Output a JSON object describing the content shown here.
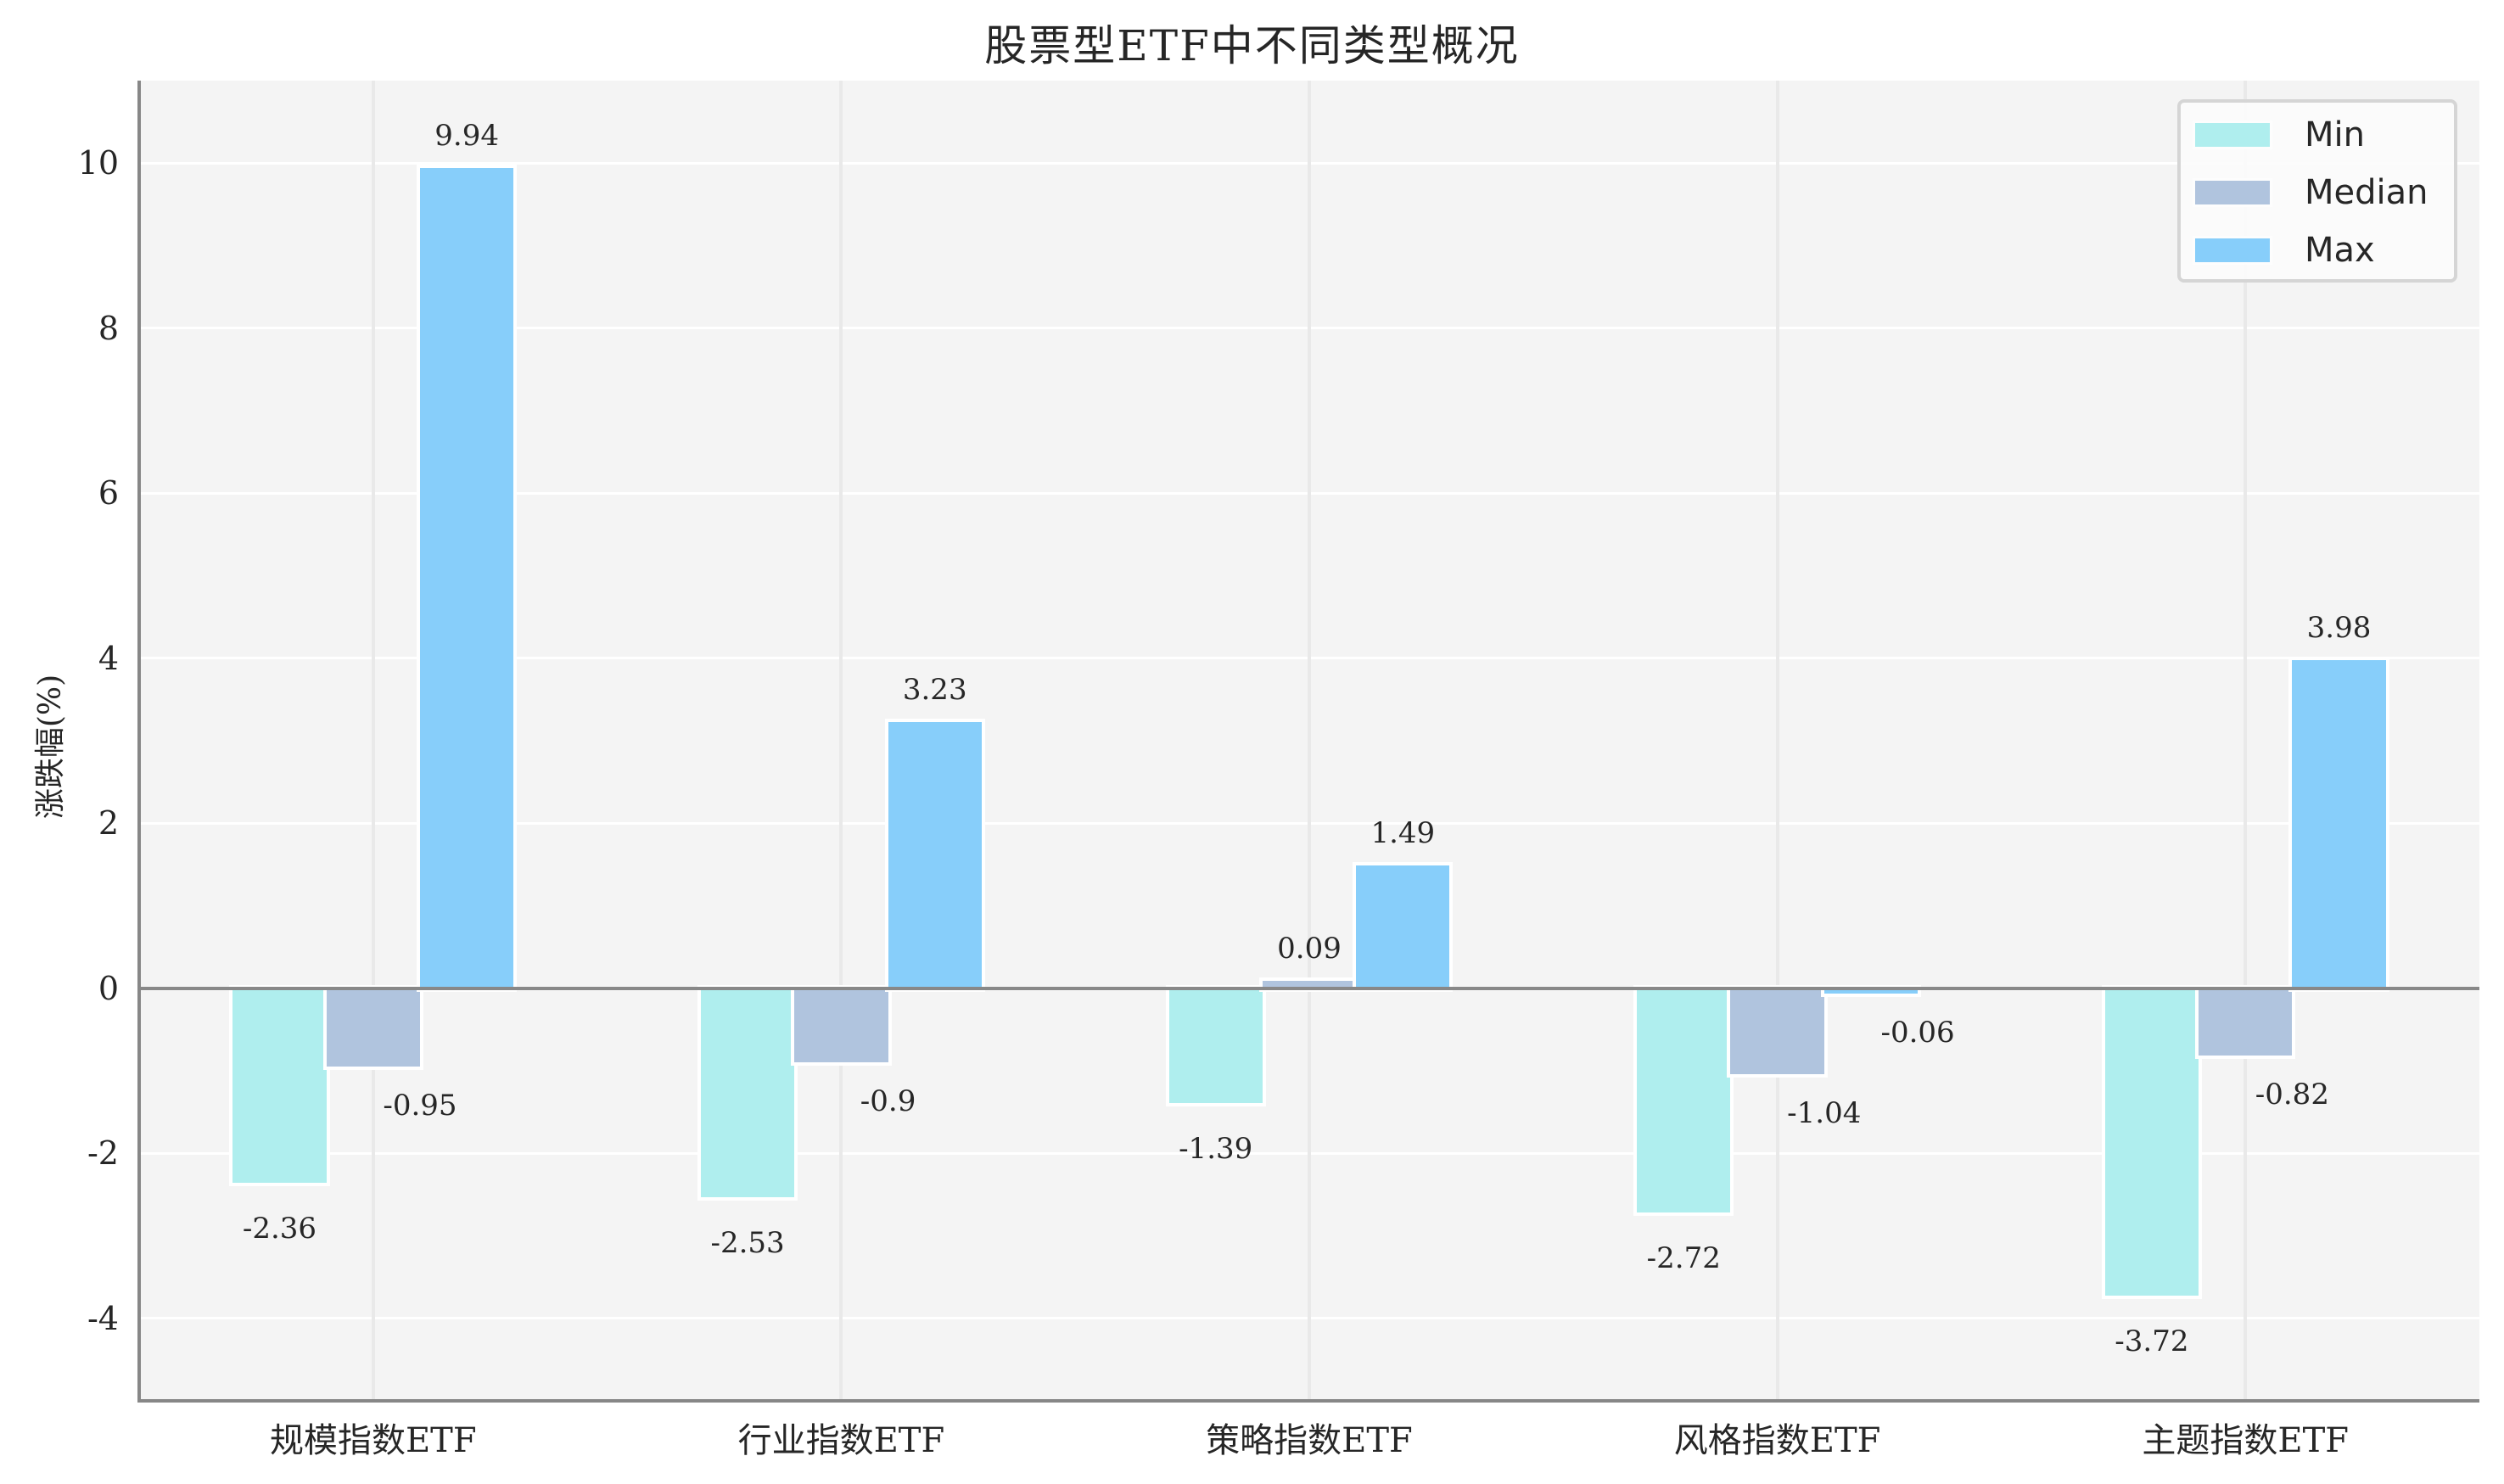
{
  "title": "股票型ETF中不同类型概况",
  "ylabel": "涨跌幅(%)",
  "yticks": [
    "10",
    "8",
    "6",
    "4",
    "2",
    "0",
    "-2",
    "-4"
  ],
  "categories": [
    "规模指数ETF",
    "行业指数ETF",
    "策略指数ETF",
    "风格指数ETF",
    "主题指数ETF"
  ],
  "legend": [
    {
      "label": "Min",
      "color": "#afeeee"
    },
    {
      "label": "Median",
      "color": "#b0c4de"
    },
    {
      "label": "Max",
      "color": "#87cefa"
    }
  ],
  "value_labels": {
    "min": [
      "-2.36",
      "-2.53",
      "-1.39",
      "-2.72",
      "-3.72"
    ],
    "median": [
      "-0.95",
      "-0.9",
      "0.09",
      "-1.04",
      "-0.82"
    ],
    "max": [
      "9.94",
      "3.23",
      "1.49",
      "-0.06",
      "3.98"
    ]
  },
  "chart_data": {
    "type": "bar",
    "title": "股票型ETF中不同类型概况",
    "xlabel": "",
    "ylabel": "涨跌幅(%)",
    "categories": [
      "规模指数ETF",
      "行业指数ETF",
      "策略指数ETF",
      "风格指数ETF",
      "主题指数ETF"
    ],
    "series": [
      {
        "name": "Min",
        "color": "#afeeee",
        "values": [
          -2.36,
          -2.53,
          -1.39,
          -2.72,
          -3.72
        ]
      },
      {
        "name": "Median",
        "color": "#b0c4de",
        "values": [
          -0.95,
          -0.9,
          0.09,
          -1.04,
          -0.82
        ]
      },
      {
        "name": "Max",
        "color": "#87cefa",
        "values": [
          9.94,
          3.23,
          1.49,
          -0.06,
          3.98
        ]
      }
    ],
    "ylim": [
      -5,
      11
    ],
    "yticks": [
      -4,
      -2,
      0,
      2,
      4,
      6,
      8,
      10
    ],
    "grid": true,
    "legend_position": "upper right",
    "data_labels": true
  }
}
